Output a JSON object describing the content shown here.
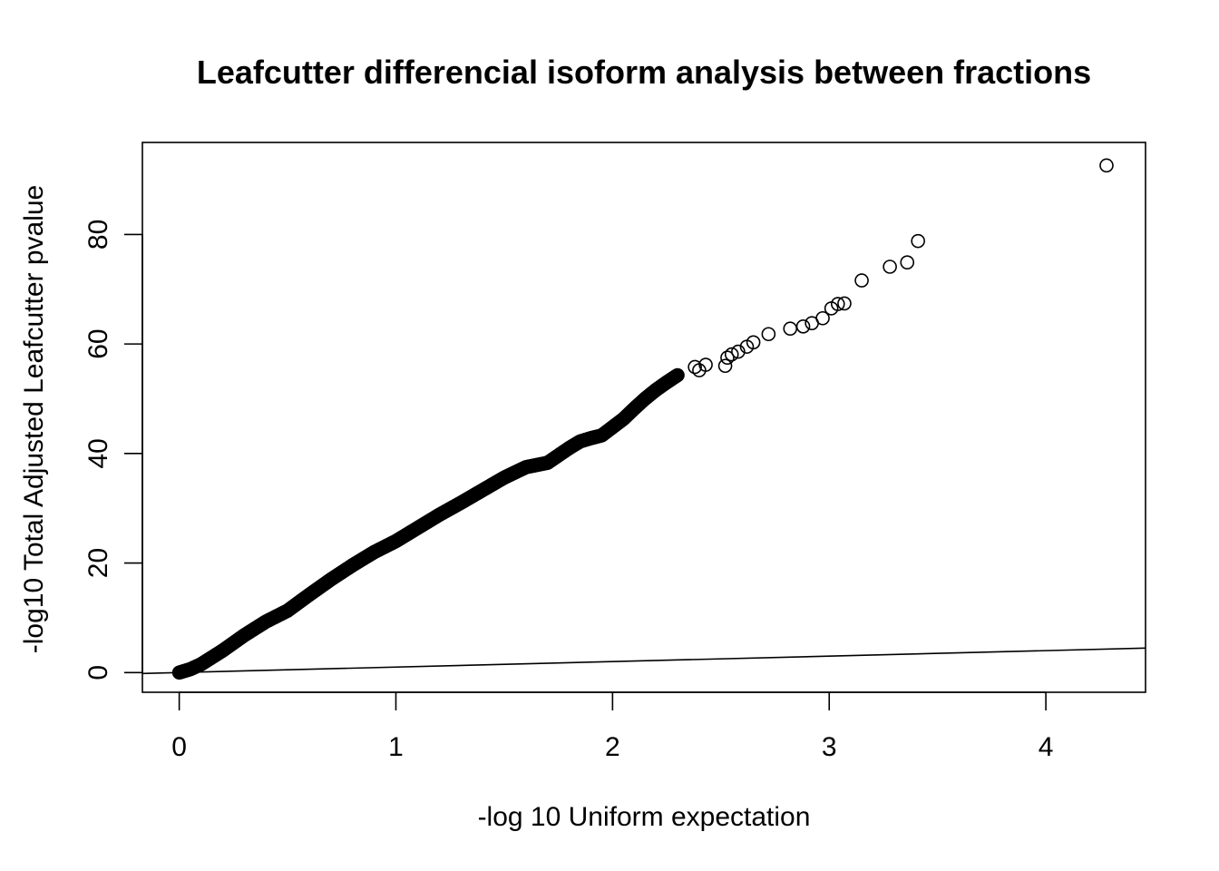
{
  "chart_data": {
    "type": "scatter",
    "title": "Leafcutter differencial isoform analysis between fractions",
    "xlabel": "-log 10 Uniform expectation",
    "ylabel": "-log10 Total Adjusted Leafcutter pvalue",
    "xlim": [
      -0.17,
      4.46
    ],
    "ylim": [
      -3.6,
      96.8
    ],
    "xticks": [
      0,
      1,
      2,
      3,
      4
    ],
    "yticks": [
      0,
      20,
      40,
      60,
      80
    ],
    "reference_line": {
      "type": "identity",
      "slope": 1,
      "intercept": 0
    },
    "grid": false,
    "legend": "none",
    "curve": {
      "description": "dense QQ points",
      "x": [
        0.0,
        0.05,
        0.1,
        0.2,
        0.3,
        0.4,
        0.5,
        0.6,
        0.7,
        0.8,
        0.9,
        1.0,
        1.1,
        1.2,
        1.3,
        1.4,
        1.5,
        1.6,
        1.7,
        1.8,
        1.85,
        1.9,
        1.95,
        2.0,
        2.05,
        2.1,
        2.15,
        2.2,
        2.25,
        2.3
      ],
      "y": [
        0.0,
        0.6,
        1.5,
        4.0,
        6.8,
        9.3,
        11.3,
        14.2,
        17.0,
        19.6,
        22.0,
        24.0,
        26.4,
        28.8,
        31.0,
        33.3,
        35.6,
        37.5,
        38.3,
        41.0,
        42.2,
        42.8,
        43.3,
        44.8,
        46.3,
        48.2,
        50.0,
        51.6,
        53.0,
        54.3
      ]
    },
    "points": {
      "x": [
        2.38,
        2.43,
        2.53,
        2.55,
        2.58,
        2.62,
        2.65,
        2.72,
        2.82,
        2.88,
        2.92,
        2.97,
        3.01,
        3.04,
        3.07,
        3.15,
        3.28,
        3.36,
        3.41,
        4.28
      ],
      "y": [
        55.8,
        56.2,
        57.5,
        58.1,
        58.6,
        59.5,
        60.3,
        61.8,
        62.8,
        63.2,
        63.8,
        64.7,
        66.5,
        67.3,
        67.4,
        71.6,
        74.1,
        74.9,
        78.8,
        92.6
      ]
    },
    "points_extra": {
      "x": [
        2.4,
        2.52
      ],
      "y": [
        55.2,
        56.0
      ]
    }
  }
}
